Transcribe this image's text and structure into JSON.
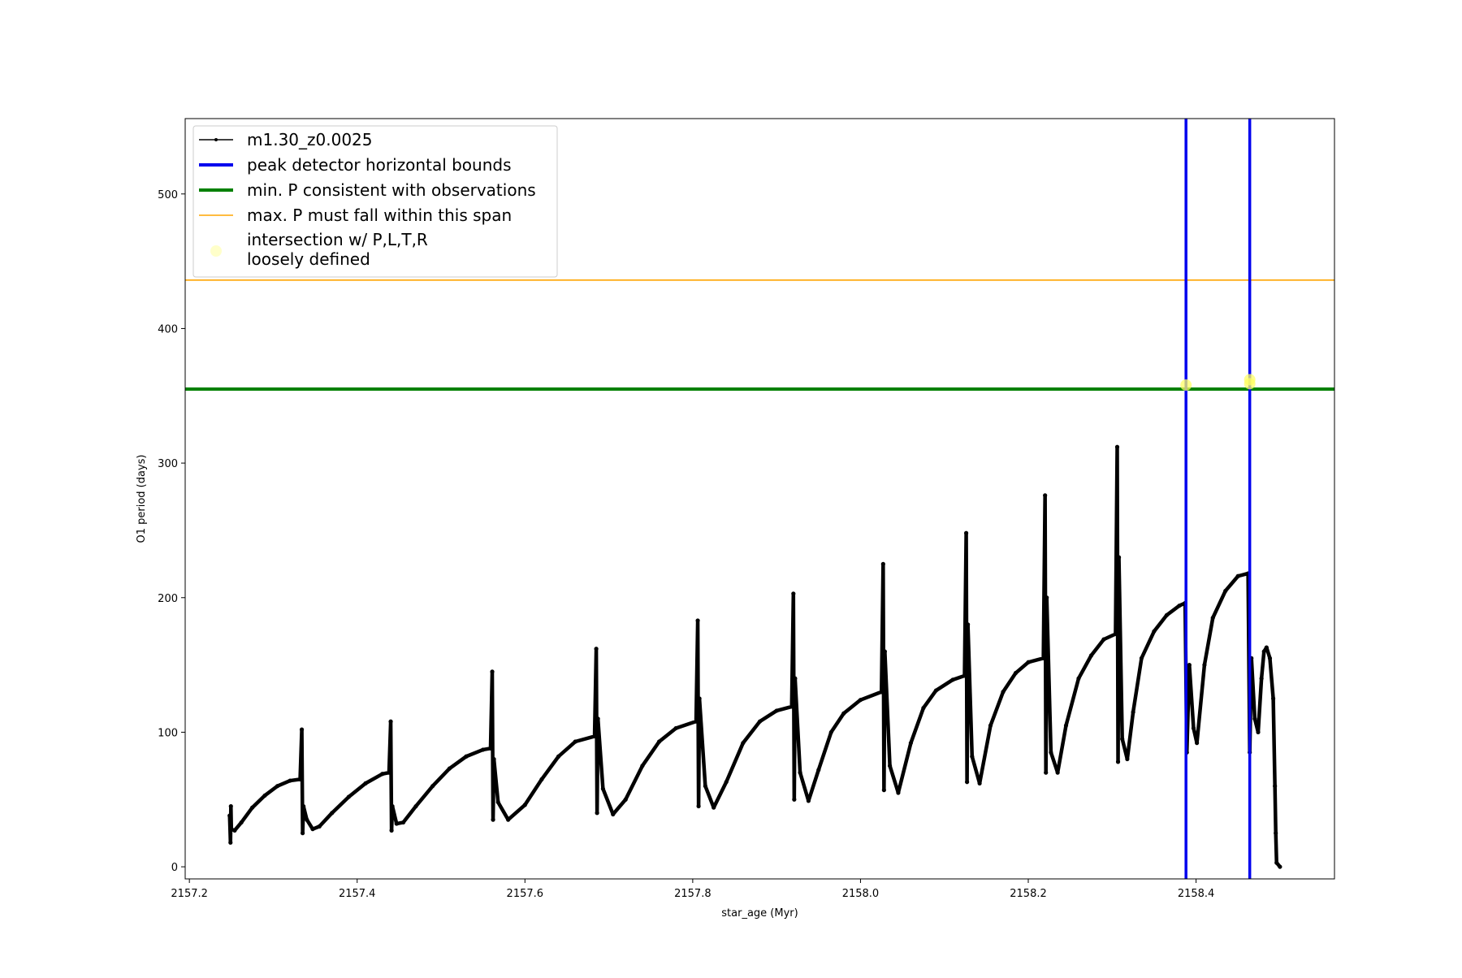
{
  "chart_data": {
    "type": "line",
    "title": "",
    "xlabel": "star_age (Myr)",
    "ylabel": "O1 period (days)",
    "xlim": [
      2157.195,
      2158.565
    ],
    "ylim": [
      -9,
      556
    ],
    "xticks": [
      2157.2,
      2157.4,
      2157.6,
      2157.8,
      2158.0,
      2158.2,
      2158.4
    ],
    "xtick_labels": [
      "2157.2",
      "2157.4",
      "2157.6",
      "2157.8",
      "2158.0",
      "2158.2",
      "2158.4"
    ],
    "yticks": [
      0,
      100,
      200,
      300,
      400,
      500
    ],
    "ytick_labels": [
      "0",
      "100",
      "200",
      "300",
      "400",
      "500"
    ],
    "grid": false,
    "legend_position": "top-left",
    "series": [
      {
        "name": "m1.30_z0.0025",
        "color": "#000000",
        "marker": "dot",
        "points": [
          [
            2157.248,
            38
          ],
          [
            2157.249,
            18
          ],
          [
            2157.2495,
            45
          ],
          [
            2157.25,
            28
          ],
          [
            2157.254,
            27
          ],
          [
            2157.262,
            33
          ],
          [
            2157.275,
            44
          ],
          [
            2157.29,
            53
          ],
          [
            2157.305,
            60
          ],
          [
            2157.32,
            64
          ],
          [
            2157.332,
            65
          ],
          [
            2157.334,
            102
          ],
          [
            2157.335,
            25
          ],
          [
            2157.336,
            45
          ],
          [
            2157.34,
            35
          ],
          [
            2157.347,
            28
          ],
          [
            2157.355,
            30
          ],
          [
            2157.37,
            40
          ],
          [
            2157.39,
            52
          ],
          [
            2157.41,
            62
          ],
          [
            2157.43,
            69
          ],
          [
            2157.438,
            70
          ],
          [
            2157.44,
            108
          ],
          [
            2157.441,
            27
          ],
          [
            2157.442,
            45
          ],
          [
            2157.447,
            32
          ],
          [
            2157.455,
            33
          ],
          [
            2157.47,
            45
          ],
          [
            2157.49,
            60
          ],
          [
            2157.51,
            73
          ],
          [
            2157.53,
            82
          ],
          [
            2157.55,
            87
          ],
          [
            2157.559,
            88
          ],
          [
            2157.561,
            145
          ],
          [
            2157.562,
            35
          ],
          [
            2157.563,
            80
          ],
          [
            2157.568,
            48
          ],
          [
            2157.58,
            35
          ],
          [
            2157.6,
            46
          ],
          [
            2157.62,
            65
          ],
          [
            2157.64,
            82
          ],
          [
            2157.66,
            93
          ],
          [
            2157.683,
            97
          ],
          [
            2157.685,
            162
          ],
          [
            2157.686,
            40
          ],
          [
            2157.687,
            110
          ],
          [
            2157.693,
            58
          ],
          [
            2157.705,
            39
          ],
          [
            2157.72,
            50
          ],
          [
            2157.74,
            75
          ],
          [
            2157.76,
            93
          ],
          [
            2157.78,
            103
          ],
          [
            2157.804,
            108
          ],
          [
            2157.806,
            183
          ],
          [
            2157.807,
            45
          ],
          [
            2157.808,
            125
          ],
          [
            2157.815,
            60
          ],
          [
            2157.825,
            44
          ],
          [
            2157.84,
            63
          ],
          [
            2157.86,
            92
          ],
          [
            2157.88,
            108
          ],
          [
            2157.9,
            116
          ],
          [
            2157.918,
            119
          ],
          [
            2157.92,
            203
          ],
          [
            2157.921,
            50
          ],
          [
            2157.922,
            140
          ],
          [
            2157.928,
            70
          ],
          [
            2157.938,
            49
          ],
          [
            2157.95,
            72
          ],
          [
            2157.965,
            100
          ],
          [
            2157.98,
            114
          ],
          [
            2158.0,
            124
          ],
          [
            2158.025,
            130
          ],
          [
            2158.027,
            225
          ],
          [
            2158.028,
            57
          ],
          [
            2158.029,
            160
          ],
          [
            2158.035,
            75
          ],
          [
            2158.045,
            55
          ],
          [
            2158.06,
            92
          ],
          [
            2158.075,
            118
          ],
          [
            2158.09,
            131
          ],
          [
            2158.11,
            139
          ],
          [
            2158.124,
            142
          ],
          [
            2158.126,
            248
          ],
          [
            2158.127,
            63
          ],
          [
            2158.128,
            180
          ],
          [
            2158.133,
            82
          ],
          [
            2158.142,
            62
          ],
          [
            2158.155,
            105
          ],
          [
            2158.17,
            130
          ],
          [
            2158.185,
            144
          ],
          [
            2158.2,
            152
          ],
          [
            2158.218,
            155
          ],
          [
            2158.22,
            276
          ],
          [
            2158.221,
            70
          ],
          [
            2158.222,
            200
          ],
          [
            2158.227,
            85
          ],
          [
            2158.235,
            70
          ],
          [
            2158.245,
            105
          ],
          [
            2158.26,
            140
          ],
          [
            2158.275,
            157
          ],
          [
            2158.29,
            169
          ],
          [
            2158.304,
            173
          ],
          [
            2158.306,
            312
          ],
          [
            2158.307,
            78
          ],
          [
            2158.308,
            230
          ],
          [
            2158.312,
            95
          ],
          [
            2158.318,
            80
          ],
          [
            2158.325,
            115
          ],
          [
            2158.335,
            155
          ],
          [
            2158.35,
            175
          ],
          [
            2158.365,
            187
          ],
          [
            2158.38,
            194
          ],
          [
            2158.387,
            196
          ],
          [
            2158.389,
            85
          ],
          [
            2158.392,
            150
          ],
          [
            2158.397,
            103
          ],
          [
            2158.401,
            92
          ],
          [
            2158.41,
            150
          ],
          [
            2158.42,
            185
          ],
          [
            2158.435,
            205
          ],
          [
            2158.45,
            216
          ],
          [
            2158.462,
            218
          ],
          [
            2158.464,
            85
          ],
          [
            2158.466,
            155
          ],
          [
            2158.47,
            110
          ],
          [
            2158.474,
            100
          ],
          [
            2158.478,
            140
          ],
          [
            2158.481,
            160
          ],
          [
            2158.484,
            163
          ],
          [
            2158.488,
            155
          ],
          [
            2158.492,
            125
          ],
          [
            2158.494,
            60
          ],
          [
            2158.495,
            25
          ],
          [
            2158.496,
            3
          ],
          [
            2158.5,
            0
          ]
        ]
      },
      {
        "name": "peak detector horizontal bounds",
        "color": "#0000ee",
        "style": "vertical-lines",
        "x": [
          2158.388,
          2158.464
        ]
      },
      {
        "name": "min. P consistent with observations",
        "color": "#008000",
        "style": "horizontal-line",
        "y": 355
      },
      {
        "name": "max. P must fall within this span",
        "color": "#ffa500",
        "style": "horizontal-line",
        "y": 436
      },
      {
        "name": "intersection w/ P,L,T,R\nloosely defined",
        "color": "#ffff66",
        "style": "markers",
        "points": [
          [
            2158.388,
            358
          ],
          [
            2158.464,
            359
          ],
          [
            2158.464,
            362
          ]
        ]
      }
    ]
  },
  "legend": {
    "items": [
      {
        "label": "m1.30_z0.0025",
        "swatch": "line-marker",
        "color": "#000000"
      },
      {
        "label": "peak detector horizontal bounds",
        "swatch": "line",
        "color": "#0000ee"
      },
      {
        "label": "min. P consistent with observations",
        "swatch": "line",
        "color": "#008000"
      },
      {
        "label": "max. P must fall within this span",
        "swatch": "thin-line",
        "color": "#ffa500"
      },
      {
        "label": "intersection w/ P,L,T,R",
        "label2": "loosely defined",
        "swatch": "dot",
        "color": "#ffff66"
      }
    ]
  }
}
